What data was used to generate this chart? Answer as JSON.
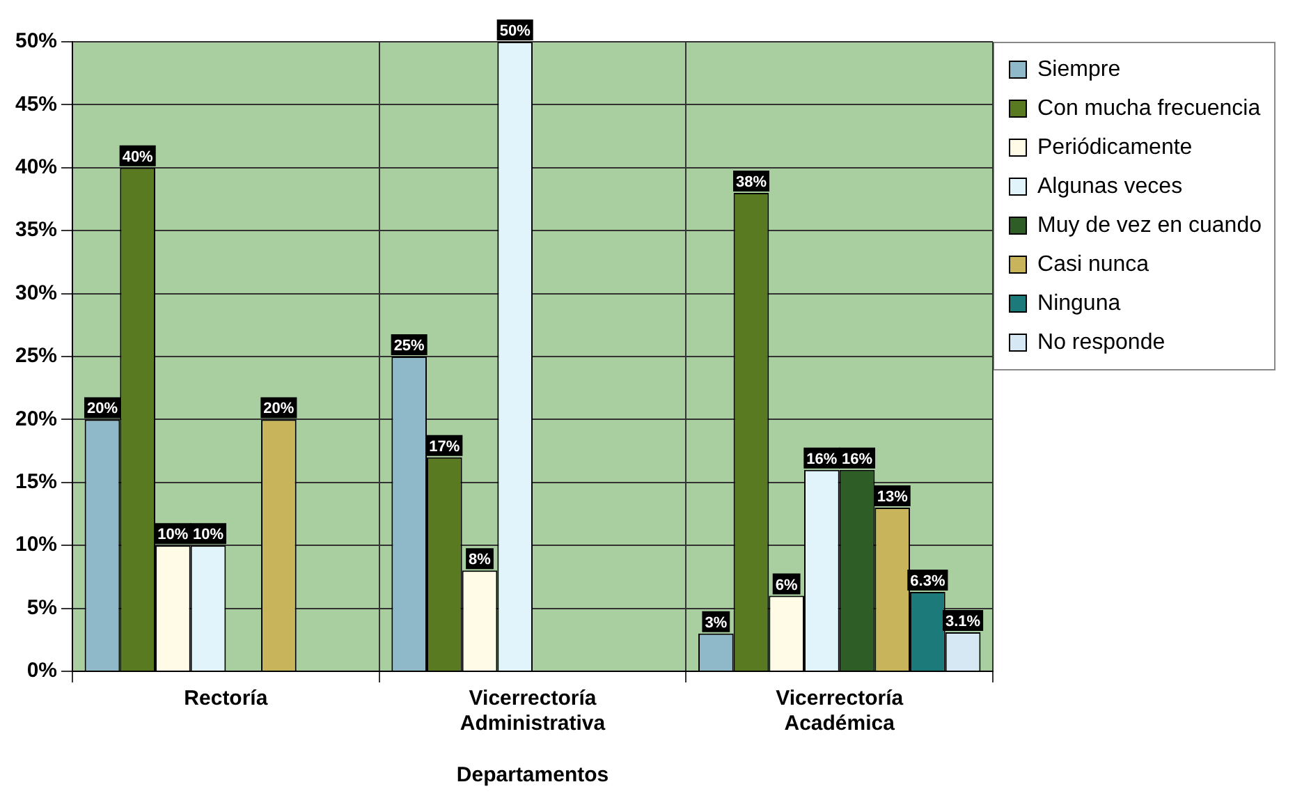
{
  "chart_data": {
    "type": "bar",
    "xlabel": "Departamentos",
    "categories": [
      "Rectoría",
      "Vicerrectoría Administrativa",
      "Vicerrectoría Académica"
    ],
    "series": [
      {
        "name": "Siempre",
        "color": "#8fb8c8",
        "values": [
          20,
          25,
          3
        ],
        "value_labels": [
          "20%",
          "25%",
          "3%"
        ]
      },
      {
        "name": "Con mucha frecuencia",
        "color": "#5a7a22",
        "values": [
          40,
          17,
          38
        ],
        "value_labels": [
          "40%",
          "17%",
          "38%"
        ]
      },
      {
        "name": "Periódicamente",
        "color": "#fffbe6",
        "values": [
          10,
          8,
          6
        ],
        "value_labels": [
          "10%",
          "8%",
          "6%"
        ]
      },
      {
        "name": "Algunas veces",
        "color": "#e2f4fb",
        "values": [
          10,
          50,
          16
        ],
        "value_labels": [
          "10%",
          "50%",
          "16%"
        ]
      },
      {
        "name": "Muy de vez en cuando",
        "color": "#2e5e26",
        "values": [
          null,
          null,
          16
        ],
        "value_labels": [
          null,
          null,
          "16%"
        ]
      },
      {
        "name": "Casi nunca",
        "color": "#c8b45a",
        "values": [
          20,
          null,
          13
        ],
        "value_labels": [
          "20%",
          null,
          "13%"
        ]
      },
      {
        "name": "Ninguna",
        "color": "#1d7a7a",
        "values": [
          null,
          null,
          6.3
        ],
        "value_labels": [
          null,
          null,
          "6.3%"
        ]
      },
      {
        "name": "No responde",
        "color": "#d6e8f4",
        "values": [
          null,
          null,
          3.1
        ],
        "value_labels": [
          null,
          null,
          "3.1%"
        ]
      }
    ],
    "ylim": [
      0,
      50
    ],
    "yticks": [
      {
        "value": 0,
        "label": "0%"
      },
      {
        "value": 5,
        "label": "5%"
      },
      {
        "value": 10,
        "label": "10%"
      },
      {
        "value": 15,
        "label": "15%"
      },
      {
        "value": 20,
        "label": "20%"
      },
      {
        "value": 25,
        "label": "25%"
      },
      {
        "value": 30,
        "label": "30%"
      },
      {
        "value": 35,
        "label": "35%"
      },
      {
        "value": 40,
        "label": "40%"
      },
      {
        "value": 45,
        "label": "45%"
      },
      {
        "value": 50,
        "label": "50%"
      }
    ],
    "grid": true,
    "legend": "top right"
  }
}
